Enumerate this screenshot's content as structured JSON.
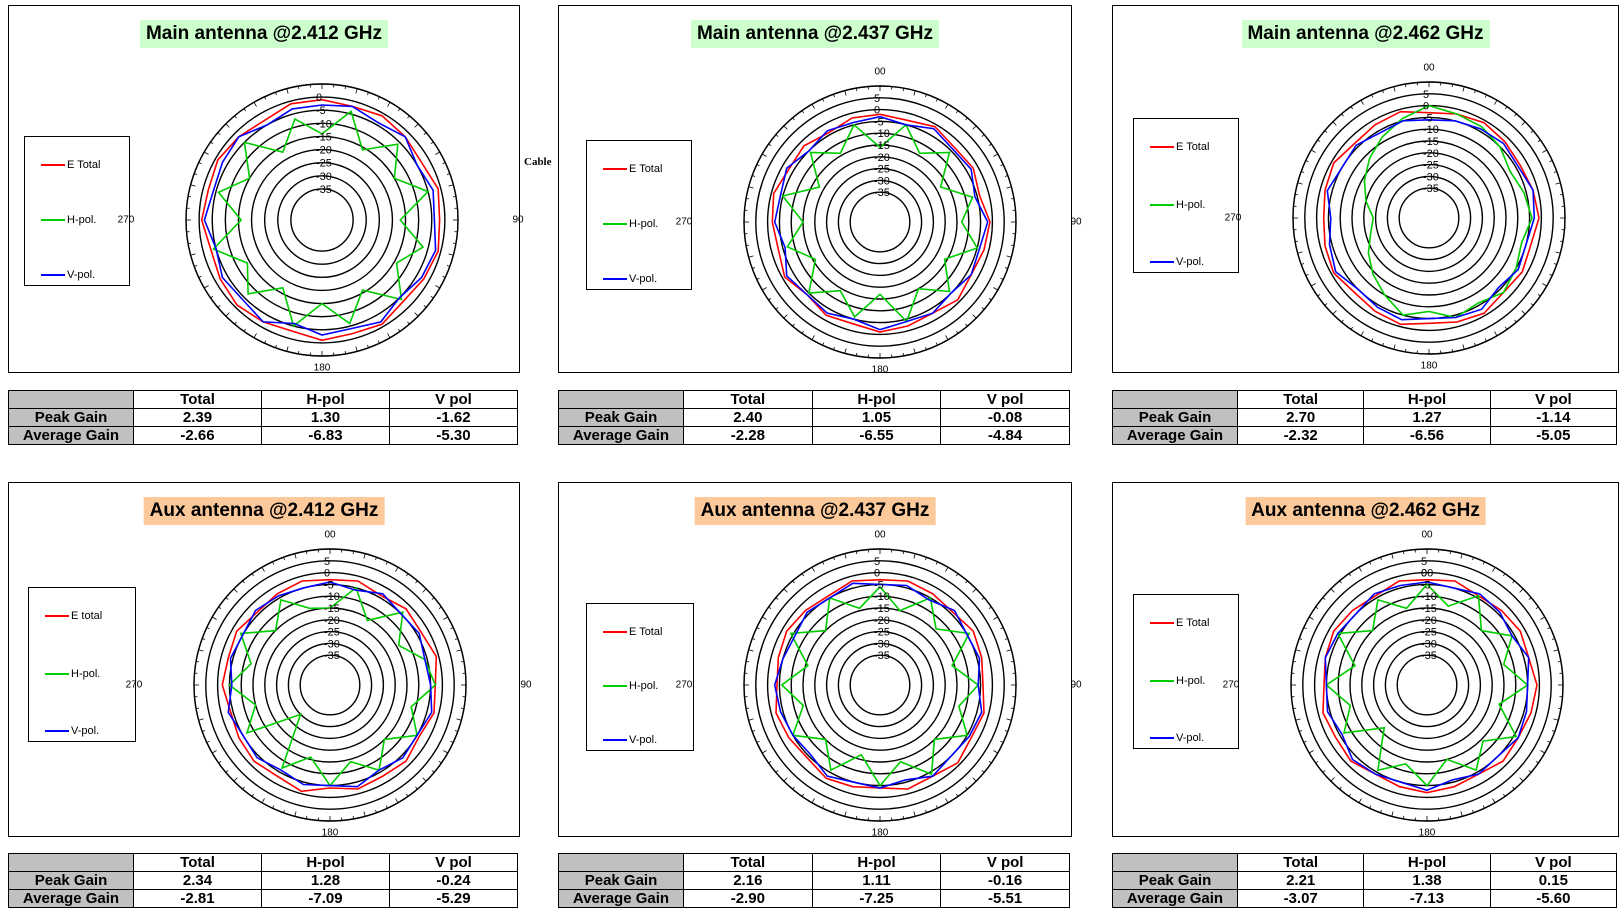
{
  "chart_data": [
    {
      "type": "polar",
      "title": "Main antenna @2.412 GHz",
      "group": "main",
      "radial_ticks": [
        "0",
        "-5",
        "-10",
        "-15",
        "-20",
        "-25",
        "-30",
        "-35"
      ],
      "angle_labels": [
        "0",
        "90",
        "180",
        "270"
      ],
      "rlim": [
        -40,
        5
      ],
      "legend": [
        "E Total",
        "H-pol.",
        "V-pol."
      ],
      "series": [
        {
          "name": "E Total",
          "color": "#ff0000",
          "gain_db": [
            -1,
            -2,
            -1,
            -2,
            -3,
            -1,
            -2,
            -1,
            -2,
            -3,
            -1,
            -2,
            -1,
            -3,
            -2,
            -1,
            -2,
            -3,
            -1,
            -2,
            -1,
            -2,
            -3,
            -1
          ]
        },
        {
          "name": "H-pol.",
          "color": "#00cc00",
          "gain_db": [
            -14,
            -4,
            -16,
            -6,
            -15,
            -5,
            -17,
            -7,
            -14,
            -4,
            -16,
            -6,
            -15,
            -5,
            -17,
            -7,
            -14,
            -4,
            -16,
            -6,
            -15,
            -5,
            -17,
            -7
          ]
        },
        {
          "name": "V-pol.",
          "color": "#0000ff",
          "gain_db": [
            -3,
            -2,
            -4,
            -2,
            -5,
            -3,
            -4,
            -2,
            -3,
            -5,
            -2,
            -4,
            -3,
            -6,
            -2,
            -4,
            -3,
            -5,
            -2,
            -4,
            -3,
            -2,
            -5,
            -3
          ]
        }
      ],
      "table": {
        "headers": [
          "Total",
          "H-pol",
          "V pol"
        ],
        "rows": [
          {
            "label": "Peak Gain",
            "values": [
              "2.39",
              "1.30",
              "-1.62"
            ]
          },
          {
            "label": "Average Gain",
            "values": [
              "-2.66",
              "-6.83",
              "-5.30"
            ]
          }
        ]
      }
    },
    {
      "type": "polar",
      "title": "Main antenna @2.437 GHz",
      "group": "main",
      "radial_ticks": [
        "5",
        "0",
        "-5",
        "-10",
        "-15",
        "-20",
        "-25",
        "-30",
        "-35"
      ],
      "angle_labels": [
        "00",
        "90",
        "180",
        "270"
      ],
      "rlim": [
        -40,
        10
      ],
      "legend": [
        "E Total",
        "H-pol.",
        "V-pol."
      ],
      "series": [
        {
          "name": "E Total",
          "color": "#ff0000",
          "gain_db": [
            -2,
            -3,
            -1,
            -3,
            -2,
            -4,
            -1,
            -2,
            -3,
            -1,
            -3,
            -2,
            -1,
            -3,
            -2,
            -4,
            -1,
            -3,
            -2,
            -1,
            -3,
            -2,
            -4,
            -2
          ]
        },
        {
          "name": "H-pol.",
          "color": "#00cc00",
          "gain_db": [
            -16,
            -5,
            -14,
            -6,
            -18,
            -7,
            -13,
            -5,
            -16,
            -6,
            -15,
            -4,
            -17,
            -6,
            -14,
            -5,
            -16,
            -7,
            -15,
            -5,
            -18,
            -6,
            -14,
            -5
          ]
        },
        {
          "name": "V-pol.",
          "color": "#0000ff",
          "gain_db": [
            -3,
            -5,
            -2,
            -4,
            -3,
            -6,
            -2,
            -4,
            -3,
            -5,
            -3,
            -4,
            -2,
            -5,
            -3,
            -4,
            -2,
            -6,
            -3,
            -4,
            -2,
            -5,
            -3,
            -4
          ]
        }
      ],
      "table": {
        "headers": [
          "Total",
          "H-pol",
          "V pol"
        ],
        "rows": [
          {
            "label": "Peak Gain",
            "values": [
              "2.40",
              "1.05",
              "-0.08"
            ]
          },
          {
            "label": "Average Gain",
            "values": [
              "-2.28",
              "-6.55",
              "-4.84"
            ]
          }
        ]
      }
    },
    {
      "type": "polar",
      "title": "Main antenna @2.462 GHz",
      "group": "main",
      "radial_ticks": [
        "5",
        "0",
        "-5",
        "-10",
        "-15",
        "-20",
        "-25",
        "-30",
        "-35"
      ],
      "angle_labels": [
        "00",
        "90",
        "180",
        "270"
      ],
      "rlim": [
        -40,
        10
      ],
      "legend": [
        "E Total",
        "H-pol.",
        "V-pol."
      ],
      "series": [
        {
          "name": "E Total",
          "color": "#ff0000",
          "gain_db": [
            -3,
            -2,
            -1,
            -2,
            -3,
            -2,
            -1,
            -3,
            -2,
            -3,
            -1,
            -2,
            -3,
            -1,
            -2,
            -3,
            -1,
            -2,
            -3,
            -2,
            -1,
            -3,
            -2,
            -1
          ]
        },
        {
          "name": "H-pol.",
          "color": "#00cc00",
          "gain_db": [
            0,
            -2,
            -3,
            -5,
            -8,
            -6,
            -4,
            -7,
            -5,
            -3,
            -6,
            -4,
            -8,
            -5,
            -10,
            -14,
            -18,
            -22,
            -24,
            -20,
            -16,
            -12,
            -8,
            -4
          ]
        },
        {
          "name": "V-pol.",
          "color": "#0000ff",
          "gain_db": [
            -6,
            -5,
            -4,
            -3,
            -4,
            -2,
            -3,
            -5,
            -4,
            -6,
            -3,
            -4,
            -5,
            -3,
            -4,
            -5,
            -2,
            -4,
            -6,
            -3,
            -5,
            -4,
            -6,
            -5
          ]
        }
      ],
      "table": {
        "headers": [
          "Total",
          "H-pol",
          "V pol"
        ],
        "rows": [
          {
            "label": "Peak Gain",
            "values": [
              "2.70",
              "1.27",
              "-1.14"
            ]
          },
          {
            "label": "Average Gain",
            "values": [
              "-2.32",
              "-6.56",
              "-5.05"
            ]
          }
        ]
      }
    },
    {
      "type": "polar",
      "title": "Aux antenna @2.412 GHz",
      "group": "aux",
      "radial_ticks": [
        "5",
        "0",
        "-5",
        "-10",
        "-15",
        "-20",
        "-25",
        "-30",
        "-35"
      ],
      "angle_labels": [
        "00",
        "90",
        "180",
        "270"
      ],
      "rlim": [
        -40,
        10
      ],
      "legend": [
        "E total",
        "H-pol.",
        "V-pol."
      ],
      "series": [
        {
          "name": "E total",
          "color": "#ff0000",
          "gain_db": [
            -3,
            -2,
            -4,
            -2,
            -3,
            -1,
            -3,
            -2,
            -4,
            -2,
            -3,
            -2,
            -4,
            -1,
            -3,
            -2,
            -3,
            -4,
            -2,
            -3,
            -2,
            -4,
            -3,
            -2
          ]
        },
        {
          "name": "H-pol.",
          "color": "#00cc00",
          "gain_db": [
            -15,
            -5,
            -16,
            -4,
            -14,
            -6,
            -3,
            -12,
            -5,
            -15,
            -6,
            -14,
            -5,
            -16,
            -7,
            -30,
            -7,
            -15,
            -5,
            -13,
            -4,
            -15,
            -6,
            -14
          ]
        },
        {
          "name": "V-pol.",
          "color": "#0000ff",
          "gain_db": [
            -4,
            -6,
            -3,
            -5,
            -4,
            -6,
            -5,
            -3,
            -5,
            -4,
            -6,
            -3,
            -5,
            -4,
            -6,
            -4,
            -5,
            -3,
            -6,
            -4,
            -5,
            -3,
            -4,
            -5
          ]
        }
      ],
      "table": {
        "headers": [
          "Total",
          "H-pol",
          "V pol"
        ],
        "rows": [
          {
            "label": "Peak Gain",
            "values": [
              "2.34",
              "1.28",
              "-0.24"
            ]
          },
          {
            "label": "Average Gain",
            "values": [
              "-2.81",
              "-7.09",
              "-5.29"
            ]
          }
        ]
      }
    },
    {
      "type": "polar",
      "title": "Aux antenna @2.437 GHz",
      "group": "aux",
      "radial_ticks": [
        "5",
        "0",
        "-5",
        "-10",
        "-15",
        "-20",
        "-25",
        "-30",
        "-35"
      ],
      "angle_labels": [
        "00",
        "90",
        "180",
        "270"
      ],
      "rlim": [
        -40,
        10
      ],
      "legend": [
        "E Total",
        "H-pol.",
        "V-pol."
      ],
      "series": [
        {
          "name": "E Total",
          "color": "#ff0000",
          "gain_db": [
            -3,
            -2,
            -3,
            -4,
            -2,
            -3,
            -4,
            -2,
            -3,
            -1,
            -3,
            -2,
            -4,
            -3,
            -2,
            -4,
            -3,
            -2,
            -4,
            -3,
            -2,
            -3,
            -4,
            -2
          ]
        },
        {
          "name": "H-pol.",
          "color": "#00cc00",
          "gain_db": [
            -6,
            -15,
            -5,
            -14,
            -4,
            -16,
            -6,
            -13,
            -5,
            -15,
            -4,
            -14,
            -5,
            -17,
            -6,
            -15,
            -5,
            -14,
            -6,
            -16,
            -4,
            -15,
            -5,
            -14
          ]
        },
        {
          "name": "V-pol.",
          "color": "#0000ff",
          "gain_db": [
            -5,
            -4,
            -6,
            -3,
            -5,
            -4,
            -6,
            -3,
            -4,
            -5,
            -3,
            -6,
            -4,
            -5,
            -3,
            -6,
            -5,
            -4,
            -3,
            -5,
            -6,
            -4,
            -5,
            -3
          ]
        }
      ],
      "table": {
        "headers": [
          "Total",
          "H-pol",
          "V pol"
        ],
        "rows": [
          {
            "label": "Peak Gain",
            "values": [
              "2.16",
              "1.11",
              "-0.16"
            ]
          },
          {
            "label": "Average Gain",
            "values": [
              "-2.90",
              "-7.25",
              "-5.51"
            ]
          }
        ]
      }
    },
    {
      "type": "polar",
      "title": "Aux antenna @2.462 GHz",
      "group": "aux",
      "radial_ticks": [
        "00",
        "5",
        "0",
        "-5",
        "-10",
        "-15",
        "-20",
        "-25",
        "-30",
        "-35"
      ],
      "angle_labels": [
        "00",
        "90",
        "180",
        "270"
      ],
      "rlim": [
        -40,
        10
      ],
      "legend": [
        "E Total",
        "H-pol.",
        "V-pol."
      ],
      "series": [
        {
          "name": "E Total",
          "color": "#ff0000",
          "gain_db": [
            -3,
            -2,
            -4,
            -3,
            -2,
            -3,
            -1,
            -2,
            -3,
            -2,
            -4,
            -3,
            -2,
            -3,
            -4,
            -2,
            -3,
            -2,
            -4,
            -3,
            -2,
            -3,
            -4,
            -2
          ]
        },
        {
          "name": "H-pol.",
          "color": "#00cc00",
          "gain_db": [
            -5,
            -13,
            -4,
            -15,
            -6,
            -14,
            -5,
            -16,
            -4,
            -14,
            -6,
            -15,
            -5,
            -13,
            -6,
            -22,
            -7,
            -14,
            -5,
            -16,
            -4,
            -15,
            -6,
            -14
          ]
        },
        {
          "name": "V-pol.",
          "color": "#0000ff",
          "gain_db": [
            -4,
            -5,
            -3,
            -4,
            -6,
            -3,
            -5,
            -4,
            -3,
            -5,
            -4,
            -6,
            -3,
            -5,
            -4,
            -3,
            -6,
            -4,
            -5,
            -3,
            -4,
            -5,
            -3,
            -4
          ]
        }
      ],
      "table": {
        "headers": [
          "Total",
          "H-pol",
          "V pol"
        ],
        "rows": [
          {
            "label": "Peak Gain",
            "values": [
              "2.21",
              "1.38",
              "0.15"
            ]
          },
          {
            "label": "Average Gain",
            "values": [
              "-3.07",
              "-7.13",
              "-5.60"
            ]
          }
        ]
      }
    }
  ],
  "stray_text": "Cable"
}
